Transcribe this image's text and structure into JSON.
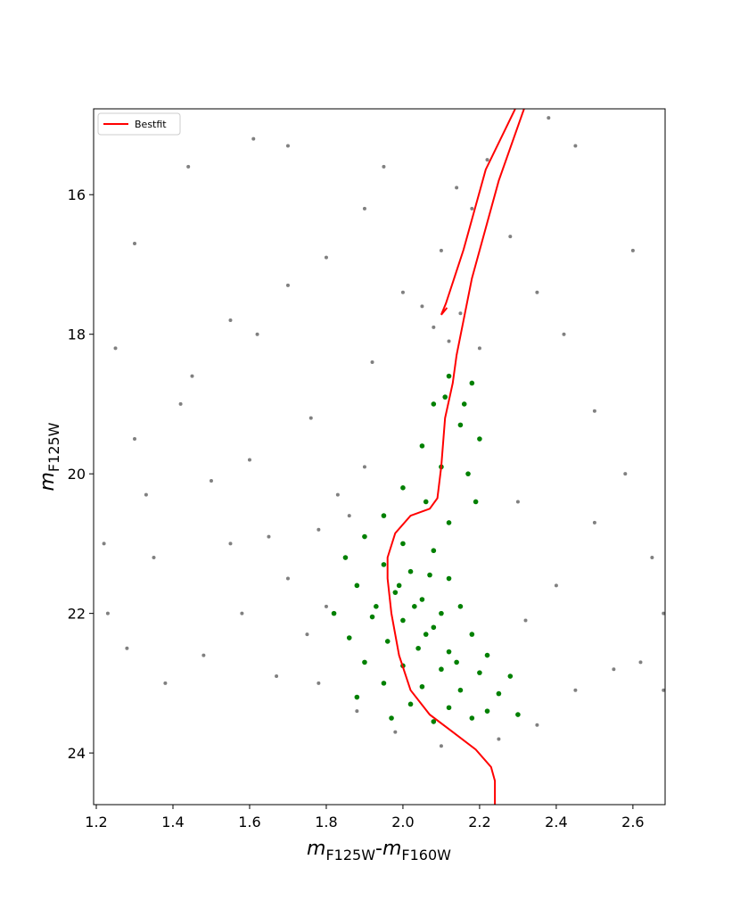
{
  "chart_data": {
    "type": "scatter",
    "xlabel": {
      "m1": "m",
      "sub1": "F125W",
      "sep": "-",
      "m2": "m",
      "sub2": "F160W"
    },
    "ylabel": {
      "m": "m",
      "sub": "F125W"
    },
    "xlim": [
      1.193,
      2.684
    ],
    "ylim": [
      24.74,
      14.77
    ],
    "xticks": [
      1.2,
      1.4,
      1.6,
      1.8,
      {
        "value": 2.0,
        "label": "2.0"
      },
      2.2,
      2.4,
      2.6
    ],
    "yticks": [
      16,
      18,
      20,
      22,
      24
    ],
    "legend": "upper left",
    "series": [
      {
        "type": "scatter",
        "color": "#808080",
        "x": [
          1.25,
          1.3,
          1.35,
          1.42,
          1.5,
          1.55,
          1.6,
          1.65,
          1.7,
          1.75,
          1.78,
          1.8,
          1.83,
          1.86,
          1.9,
          1.58,
          1.48,
          1.38,
          1.28,
          1.22,
          1.45,
          1.62,
          1.7,
          1.8,
          1.9,
          1.95,
          2.0,
          2.05,
          2.08,
          2.12,
          2.15,
          2.2,
          2.1,
          2.18,
          2.22,
          2.14,
          2.28,
          2.35,
          2.42,
          2.5,
          2.58,
          2.65,
          2.68,
          2.55,
          2.45,
          2.35,
          2.25,
          2.1,
          1.98,
          1.88,
          1.78,
          2.4,
          2.32,
          2.3,
          2.6,
          2.45,
          2.38,
          1.61,
          1.7,
          1.3,
          1.44,
          1.55,
          2.62,
          2.68,
          1.23,
          1.92,
          1.76,
          2.5,
          1.33,
          1.67
        ],
        "values": [
          18.2,
          19.5,
          21.2,
          19.0,
          20.1,
          21.0,
          19.8,
          20.9,
          21.5,
          22.3,
          20.8,
          21.9,
          20.3,
          20.6,
          19.9,
          22.0,
          22.6,
          23.0,
          22.5,
          21.0,
          18.6,
          18.0,
          17.3,
          16.9,
          16.2,
          15.6,
          17.4,
          17.6,
          17.9,
          18.1,
          17.7,
          18.2,
          16.8,
          16.2,
          15.5,
          15.9,
          16.6,
          17.4,
          18.0,
          19.1,
          20.0,
          21.2,
          22.0,
          22.8,
          23.1,
          23.6,
          23.8,
          23.9,
          23.7,
          23.4,
          23.0,
          21.6,
          22.1,
          20.4,
          16.8,
          15.3,
          14.9,
          15.2,
          15.3,
          16.7,
          15.6,
          17.8,
          22.7,
          23.1,
          22.0,
          18.4,
          19.2,
          20.7,
          20.3,
          22.9
        ]
      },
      {
        "type": "scatter",
        "color": "#008000",
        "x": [
          2.12,
          2.18,
          2.08,
          2.15,
          2.2,
          2.05,
          2.1,
          2.17,
          2.0,
          2.06,
          1.95,
          2.12,
          1.9,
          2.0,
          2.08,
          1.85,
          1.95,
          2.02,
          2.12,
          1.88,
          1.98,
          2.05,
          2.15,
          1.82,
          1.92,
          2.0,
          2.08,
          2.18,
          1.86,
          1.96,
          2.04,
          2.12,
          2.22,
          1.9,
          2.0,
          2.1,
          2.2,
          2.28,
          1.95,
          2.05,
          2.15,
          2.25,
          1.88,
          2.02,
          2.12,
          2.22,
          2.3,
          1.97,
          2.08,
          2.18,
          2.03,
          2.06,
          1.99,
          2.1,
          2.14,
          1.93,
          2.07,
          2.16,
          2.11,
          2.19
        ],
        "values": [
          18.6,
          18.7,
          19.0,
          19.3,
          19.5,
          19.6,
          19.9,
          20.0,
          20.2,
          20.4,
          20.6,
          20.7,
          20.9,
          21.0,
          21.1,
          21.2,
          21.3,
          21.4,
          21.5,
          21.6,
          21.7,
          21.8,
          21.9,
          22.0,
          22.05,
          22.1,
          22.2,
          22.3,
          22.35,
          22.4,
          22.5,
          22.55,
          22.6,
          22.7,
          22.75,
          22.8,
          22.85,
          22.9,
          23.0,
          23.05,
          23.1,
          23.15,
          23.2,
          23.3,
          23.35,
          23.4,
          23.45,
          23.5,
          23.55,
          23.5,
          21.9,
          22.3,
          21.6,
          22.0,
          22.7,
          21.9,
          21.45,
          19.0,
          18.9,
          20.4
        ]
      },
      {
        "type": "line",
        "name": "Bestfit",
        "color": "#ff0000",
        "x": [
          2.24,
          2.24,
          2.23,
          2.19,
          2.13,
          2.07,
          2.02,
          1.99,
          1.97,
          1.96,
          1.96,
          1.98,
          2.02,
          2.07,
          2.09,
          2.1,
          2.11,
          2.13,
          2.14,
          2.18,
          2.25,
          2.316,
          null,
          2.293,
          2.216,
          2.158,
          2.112,
          2.1,
          2.115
        ],
        "values": [
          24.74,
          24.4,
          24.2,
          23.95,
          23.7,
          23.45,
          23.1,
          22.6,
          22.0,
          21.5,
          21.2,
          20.85,
          20.6,
          20.5,
          20.35,
          19.9,
          19.2,
          18.7,
          18.3,
          17.2,
          15.8,
          14.77,
          null,
          14.77,
          15.64,
          16.79,
          17.56,
          17.72,
          17.62
        ]
      }
    ]
  }
}
